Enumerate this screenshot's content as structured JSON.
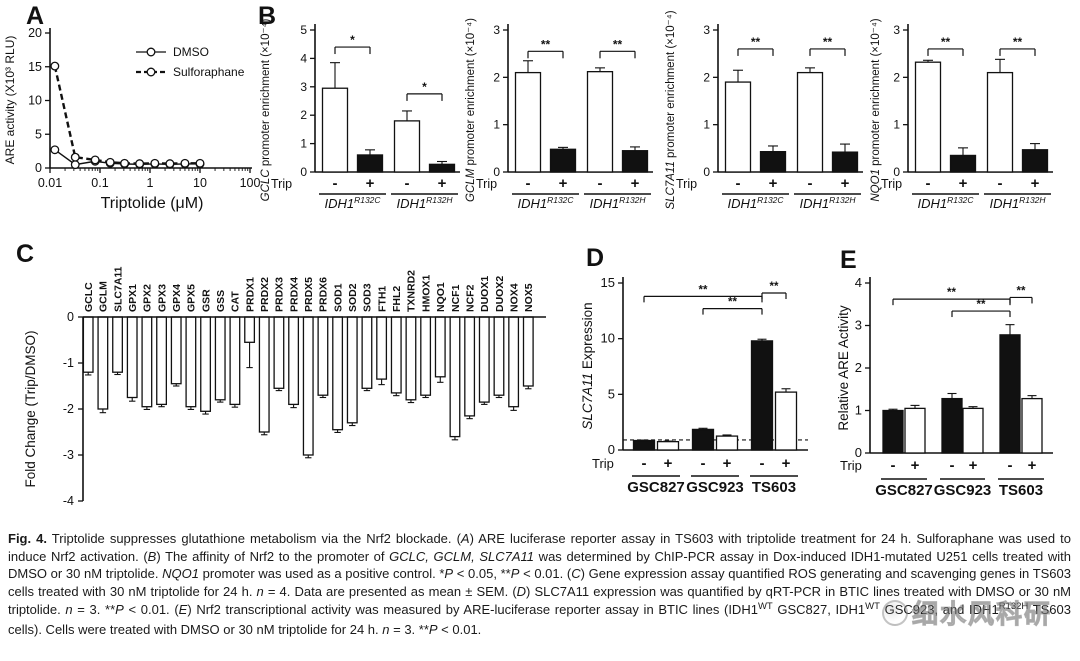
{
  "panels": {
    "a": {
      "letter": "A"
    },
    "b": {
      "letter": "B"
    },
    "c": {
      "letter": "C"
    },
    "d": {
      "letter": "D"
    },
    "e": {
      "letter": "E"
    }
  },
  "chart_data": [
    {
      "id": "A",
      "type": "line",
      "xlabel": "Triptolide (μM)",
      "ylabel": "ARE activity (X10³ RLU)",
      "xscale": "log",
      "xlim": [
        0.01,
        100
      ],
      "ylim": [
        0,
        20
      ],
      "yticks": [
        0,
        5,
        10,
        15,
        20
      ],
      "xticks": [
        0.01,
        0.1,
        1,
        10,
        100
      ],
      "xtick_labels": [
        "0.01",
        "0.1",
        "1",
        "10",
        "100"
      ],
      "legend_position": "upper right",
      "series": [
        {
          "name": "DMSO",
          "dash": false,
          "x": [
            0.0125,
            0.032,
            0.08,
            0.16,
            0.31,
            0.62,
            1.25,
            2.5,
            5,
            10
          ],
          "y": [
            2.7,
            0.5,
            1.0,
            0.7,
            0.6,
            0.55,
            0.6,
            0.55,
            0.6,
            0.6
          ]
        },
        {
          "name": "Sulforaphane",
          "dash": true,
          "x": [
            0.0125,
            0.032,
            0.08,
            0.16,
            0.31,
            0.62,
            1.25,
            2.5,
            5,
            10
          ],
          "y": [
            15.1,
            1.6,
            1.2,
            0.85,
            0.7,
            0.65,
            0.7,
            0.65,
            0.7,
            0.7
          ]
        }
      ]
    },
    {
      "id": "B1",
      "type": "bar",
      "ylabel_italic": "GCLC",
      "ylabel_rest": " promoter enrichment (×10⁻⁴)",
      "ylim": [
        0,
        5
      ],
      "yticks": [
        0,
        1,
        2,
        3,
        4,
        5
      ],
      "row_label": "Trip",
      "groups": [
        {
          "label_base": "IDH1",
          "label_sup": "R132C",
          "sig": "*",
          "sig_y": 4.4,
          "bars": [
            {
              "sign": "-",
              "value": 2.95,
              "err": 0.9,
              "fill": "white"
            },
            {
              "sign": "+",
              "value": 0.6,
              "err": 0.18,
              "fill": "black"
            }
          ]
        },
        {
          "label_base": "IDH1",
          "label_sup": "R132H",
          "sig": "*",
          "sig_y": 2.75,
          "bars": [
            {
              "sign": "-",
              "value": 1.8,
              "err": 0.35,
              "fill": "white"
            },
            {
              "sign": "+",
              "value": 0.27,
              "err": 0.1,
              "fill": "black"
            }
          ]
        }
      ]
    },
    {
      "id": "B2",
      "type": "bar",
      "ylabel_italic": "GCLM",
      "ylabel_rest": " promoter enrichment (×10⁻⁴)",
      "ylim": [
        0,
        3
      ],
      "yticks": [
        0,
        1,
        2,
        3
      ],
      "row_label": "Trip",
      "groups": [
        {
          "label_base": "IDH1",
          "label_sup": "R132C",
          "sig": "**",
          "sig_y": 2.55,
          "bars": [
            {
              "sign": "-",
              "value": 2.1,
              "err": 0.25,
              "fill": "white"
            },
            {
              "sign": "+",
              "value": 0.48,
              "err": 0.04,
              "fill": "black"
            }
          ]
        },
        {
          "label_base": "IDH1",
          "label_sup": "R132H",
          "sig": "**",
          "sig_y": 2.55,
          "bars": [
            {
              "sign": "-",
              "value": 2.12,
              "err": 0.08,
              "fill": "white"
            },
            {
              "sign": "+",
              "value": 0.45,
              "err": 0.08,
              "fill": "black"
            }
          ]
        }
      ]
    },
    {
      "id": "B3",
      "type": "bar",
      "ylabel_italic": "SLC7A11",
      "ylabel_rest": " promoter enrichment (×10⁻⁴)",
      "ylim": [
        0,
        3
      ],
      "yticks": [
        0,
        1,
        2,
        3
      ],
      "row_label": "Trip",
      "groups": [
        {
          "label_base": "IDH1",
          "label_sup": "R132C",
          "sig": "**",
          "sig_y": 2.6,
          "bars": [
            {
              "sign": "-",
              "value": 1.9,
              "err": 0.25,
              "fill": "white"
            },
            {
              "sign": "+",
              "value": 0.43,
              "err": 0.12,
              "fill": "black"
            }
          ]
        },
        {
          "label_base": "IDH1",
          "label_sup": "R132H",
          "sig": "**",
          "sig_y": 2.6,
          "bars": [
            {
              "sign": "-",
              "value": 2.1,
              "err": 0.1,
              "fill": "white"
            },
            {
              "sign": "+",
              "value": 0.42,
              "err": 0.17,
              "fill": "black"
            }
          ]
        }
      ]
    },
    {
      "id": "B4",
      "type": "bar",
      "ylabel_italic": "NQO1",
      "ylabel_rest": " promoter enrichment (×10⁻⁴)",
      "ylim": [
        0,
        3
      ],
      "yticks": [
        0,
        1,
        2,
        3
      ],
      "row_label": "Trip",
      "groups": [
        {
          "label_base": "IDH1",
          "label_sup": "R132C",
          "sig": "**",
          "sig_y": 2.6,
          "bars": [
            {
              "sign": "-",
              "value": 2.32,
              "err": 0.04,
              "fill": "white"
            },
            {
              "sign": "+",
              "value": 0.35,
              "err": 0.16,
              "fill": "black"
            }
          ]
        },
        {
          "label_base": "IDH1",
          "label_sup": "R132H",
          "sig": "**",
          "sig_y": 2.6,
          "bars": [
            {
              "sign": "-",
              "value": 2.1,
              "err": 0.28,
              "fill": "white"
            },
            {
              "sign": "+",
              "value": 0.47,
              "err": 0.13,
              "fill": "black"
            }
          ]
        }
      ]
    },
    {
      "id": "C",
      "type": "bar",
      "ylabel": "Fold Change (Trip/DMSO)",
      "ylim": [
        -4,
        0
      ],
      "yticks": [
        0,
        -1,
        -2,
        -3,
        -4
      ],
      "categories": [
        "GCLC",
        "GCLM",
        "SLC7A11",
        "GPX1",
        "GPX2",
        "GPX3",
        "GPX4",
        "GPX5",
        "GSR",
        "GSS",
        "CAT",
        "PRDX1",
        "PRDX2",
        "PRDX3",
        "PRDX4",
        "PRDX5",
        "PRDX6",
        "SOD1",
        "SOD2",
        "SOD3",
        "FTH1",
        "FHL2",
        "TXNRD2",
        "HMOX1",
        "NQO1",
        "NCF1",
        "NCF2",
        "DUOX1",
        "DUOX2",
        "NOX4",
        "NOX5"
      ],
      "values": [
        -1.2,
        -2.0,
        -1.2,
        -1.75,
        -1.95,
        -1.9,
        -1.45,
        -1.95,
        -2.05,
        -1.8,
        -1.9,
        -0.55,
        -2.5,
        -1.55,
        -1.9,
        -3.0,
        -1.7,
        -2.45,
        -2.3,
        -1.55,
        -1.35,
        -1.65,
        -1.8,
        -1.7,
        -1.3,
        -2.6,
        -2.15,
        -1.85,
        -1.7,
        -1.95,
        -1.5
      ],
      "errors": [
        0.06,
        0.08,
        0.05,
        0.08,
        0.06,
        0.05,
        0.05,
        0.06,
        0.06,
        0.05,
        0.06,
        0.55,
        0.06,
        0.05,
        0.07,
        0.06,
        0.05,
        0.06,
        0.06,
        0.05,
        0.12,
        0.06,
        0.06,
        0.05,
        0.12,
        0.07,
        0.06,
        0.05,
        0.05,
        0.08,
        0.06
      ]
    },
    {
      "id": "D",
      "type": "bar",
      "ylabel_italic": "SLC7A11",
      "ylabel_rest": " Expression",
      "ylim": [
        0,
        15
      ],
      "yticks": [
        0,
        5,
        10,
        15
      ],
      "row_label": "Trip",
      "dashline": 0.9,
      "groups": [
        {
          "label": "GSC827",
          "bars": [
            {
              "sign": "-",
              "value": 0.85,
              "err": 0.04,
              "fill": "black"
            },
            {
              "sign": "+",
              "value": 0.75,
              "err": 0.05,
              "fill": "white"
            }
          ]
        },
        {
          "label": "GSC923",
          "bars": [
            {
              "sign": "-",
              "value": 1.85,
              "err": 0.1,
              "fill": "black"
            },
            {
              "sign": "+",
              "value": 1.25,
              "err": 0.1,
              "fill": "white"
            }
          ]
        },
        {
          "label": "TS603",
          "bars": [
            {
              "sign": "-",
              "value": 9.8,
              "err": 0.15,
              "fill": "black"
            },
            {
              "sign": "+",
              "value": 5.2,
              "err": 0.3,
              "fill": "white"
            }
          ]
        }
      ],
      "sig": [
        {
          "from": [
            0,
            0
          ],
          "to": [
            2,
            0
          ],
          "y": 13.8,
          "label": "**"
        },
        {
          "from": [
            1,
            0
          ],
          "to": [
            2,
            0
          ],
          "y": 12.7,
          "label": "**"
        },
        {
          "from": [
            2,
            0
          ],
          "to": [
            2,
            1
          ],
          "y": 14.1,
          "label": "**"
        }
      ]
    },
    {
      "id": "E",
      "type": "bar",
      "ylabel_italic": "",
      "ylabel_rest": "Relative ARE Activity",
      "ylim": [
        0,
        4
      ],
      "yticks": [
        0,
        1,
        2,
        3,
        4
      ],
      "row_label": "Trip",
      "groups": [
        {
          "label": "GSC827",
          "bars": [
            {
              "sign": "-",
              "value": 1.0,
              "err": 0.03,
              "fill": "black"
            },
            {
              "sign": "+",
              "value": 1.05,
              "err": 0.07,
              "fill": "white"
            }
          ]
        },
        {
          "label": "GSC923",
          "bars": [
            {
              "sign": "-",
              "value": 1.28,
              "err": 0.12,
              "fill": "black"
            },
            {
              "sign": "+",
              "value": 1.05,
              "err": 0.04,
              "fill": "white"
            }
          ]
        },
        {
          "label": "TS603",
          "bars": [
            {
              "sign": "-",
              "value": 2.78,
              "err": 0.24,
              "fill": "black"
            },
            {
              "sign": "+",
              "value": 1.28,
              "err": 0.07,
              "fill": "white"
            }
          ]
        }
      ],
      "sig": [
        {
          "from": [
            0,
            0
          ],
          "to": [
            2,
            0
          ],
          "y": 3.62,
          "label": "**"
        },
        {
          "from": [
            1,
            0
          ],
          "to": [
            2,
            0
          ],
          "y": 3.34,
          "label": "**"
        },
        {
          "from": [
            2,
            0
          ],
          "to": [
            2,
            1
          ],
          "y": 3.66,
          "label": "**"
        }
      ]
    }
  ],
  "caption": {
    "segments": [
      {
        "t": "Fig. 4.",
        "b": 1
      },
      {
        "t": "  Triptolide suppresses glutathione metabolism via the Nrf2 blockade. ("
      },
      {
        "t": "A",
        "i": 1
      },
      {
        "t": ") ARE luciferase reporter assay in TS603 with triptolide treatment for 24 h. Sulforaphane was used to induce Nrf2 activation. ("
      },
      {
        "t": "B",
        "i": 1
      },
      {
        "t": ") The affinity of Nrf2 to the promoter of "
      },
      {
        "t": "GCLC, GCLM, SLC7A11",
        "i": 1
      },
      {
        "t": " was determined by ChIP-PCR assay in Dox-induced IDH1-mutated U251 cells treated with DMSO or 30 nM triptolide. "
      },
      {
        "t": "NQO1",
        "i": 1
      },
      {
        "t": " promoter was used as a positive control. *"
      },
      {
        "t": "P",
        "i": 1
      },
      {
        "t": " < 0.05, **"
      },
      {
        "t": "P",
        "i": 1
      },
      {
        "t": " < 0.01. ("
      },
      {
        "t": "C",
        "i": 1
      },
      {
        "t": ") Gene expression assay quantified ROS generating and scavenging genes in TS603 cells treated with 30 nM triptolide for 24 h. "
      },
      {
        "t": "n",
        "i": 1
      },
      {
        "t": " = 4. Data are presented as mean ± SEM. ("
      },
      {
        "t": "D",
        "i": 1
      },
      {
        "t": ") SLC7A11 expression was quantified by qRT-PCR in BTIC lines treated with DMSO or 30 nM triptolide. "
      },
      {
        "t": "n",
        "i": 1
      },
      {
        "t": " = 3. **"
      },
      {
        "t": "P",
        "i": 1
      },
      {
        "t": " < 0.01. ("
      },
      {
        "t": "E",
        "i": 1
      },
      {
        "t": ") Nrf2 transcriptional activity was measured by ARE-luciferase reporter assay in BTIC lines (IDH1"
      },
      {
        "t": "WT",
        "sup": 1
      },
      {
        "t": " GSC827, IDH1"
      },
      {
        "t": "WT",
        "sup": 1
      },
      {
        "t": " GSC923, and IDH1"
      },
      {
        "t": "R132H",
        "sup": 1
      },
      {
        "t": " TS603 cells). Cells were treated with DMSO or 30 nM triptolide for 24 h. "
      },
      {
        "t": "n",
        "i": 1
      },
      {
        "t": " = 3. **"
      },
      {
        "t": "P",
        "i": 1
      },
      {
        "t": " < 0.01."
      }
    ]
  },
  "watermark": {
    "text": "细水风科研"
  }
}
